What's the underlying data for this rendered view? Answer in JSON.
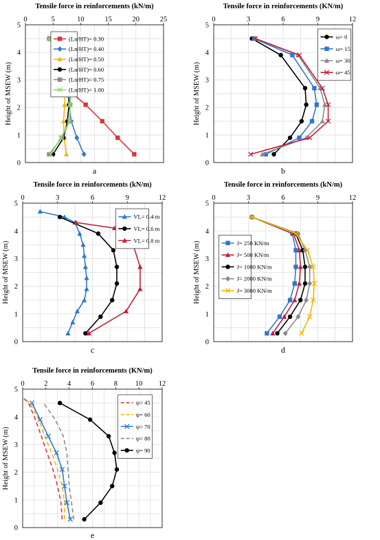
{
  "charts": [
    {
      "id": "a",
      "x_title": "Tensile force in reinforcements (kN/m)",
      "y_title": "Height of MSEW (m)",
      "panel_label": "a",
      "xlim": [
        0,
        25
      ],
      "xticks": [
        0,
        5,
        10,
        15,
        20,
        25
      ],
      "ylim": [
        0,
        5
      ],
      "yticks": [
        0,
        1,
        2,
        3,
        4,
        5
      ],
      "legend": {
        "x0": 4.6,
        "y0": 4.75,
        "w": 1.55,
        "step": 0.37
      },
      "series": [
        {
          "name": "(Ln/HT)= 0.30",
          "color": "#d9353b",
          "marker": "square",
          "dash": "",
          "x": [
            19.7,
            16.7,
            13.9,
            10.9,
            7.3,
            6.3,
            4.3
          ],
          "y": [
            0.3,
            0.9,
            1.5,
            2.1,
            2.7,
            3.9,
            4.5
          ]
        },
        {
          "name": "(Ln/HT)= 0.40",
          "color": "#2f78cc",
          "marker": "diamond",
          "dash": "",
          "x": [
            10.6,
            9.3,
            8.3,
            7.9,
            7.6,
            6.9,
            4.3
          ],
          "y": [
            0.3,
            0.9,
            1.5,
            2.1,
            2.7,
            3.9,
            4.5
          ]
        },
        {
          "name": "(Ln/HT)= 0.50",
          "color": "#f4b400",
          "marker": "triangle",
          "dash": "",
          "x": [
            7.4,
            7.0,
            6.9,
            7.1,
            7.2,
            6.2,
            4.3
          ],
          "y": [
            0.3,
            0.9,
            1.5,
            2.1,
            2.7,
            3.9,
            4.5
          ]
        },
        {
          "name": "(Ln/HT)= 0.60",
          "color": "#000000",
          "marker": "circle",
          "dash": "",
          "x": [
            5.0,
            6.9,
            7.6,
            7.9,
            7.9,
            6.8,
            4.3
          ],
          "y": [
            0.3,
            0.9,
            1.5,
            2.1,
            2.7,
            3.9,
            4.5
          ]
        },
        {
          "name": "(Ln/HT)= 0.75",
          "color": "#8a8a8a",
          "marker": "square",
          "dash": "",
          "x": [
            4.3,
            6.6,
            8.0,
            8.1,
            7.8,
            6.6,
            4.3
          ],
          "y": [
            0.3,
            0.9,
            1.5,
            2.1,
            2.7,
            3.9,
            4.5
          ]
        },
        {
          "name": "(Ln/HT)= 1.00",
          "color": "#8ed86a",
          "marker": "x",
          "dash": "",
          "x": [
            4.6,
            6.4,
            8.0,
            8.1,
            8.3,
            6.5,
            4.3
          ],
          "y": [
            0.3,
            0.9,
            1.5,
            2.1,
            2.7,
            3.9,
            4.5
          ]
        }
      ]
    },
    {
      "id": "b",
      "x_title": "Tensile force in reinforcements (KN/m)",
      "y_title": "Height of MSEW (m)",
      "panel_label": "b",
      "xlim": [
        0,
        12
      ],
      "xticks": [
        0,
        3,
        6,
        9,
        12
      ],
      "ylim": [
        0,
        5
      ],
      "yticks": [
        0,
        1,
        2,
        3,
        4,
        5
      ],
      "legend": {
        "x0": 9.0,
        "y0": 4.85,
        "w": 1.3,
        "step": 0.43
      },
      "series": [
        {
          "name": "ω= 0",
          "color": "#000000",
          "marker": "circle",
          "dash": "",
          "x": [
            5.2,
            6.6,
            7.6,
            8.0,
            7.9,
            5.8,
            3.3
          ],
          "y": [
            0.3,
            0.9,
            1.5,
            2.1,
            2.7,
            3.9,
            4.5
          ]
        },
        {
          "name": "ω= 15",
          "color": "#2f78cc",
          "marker": "square",
          "dash": "",
          "x": [
            4.5,
            7.4,
            8.5,
            8.9,
            8.7,
            6.8,
            3.5
          ],
          "y": [
            0.3,
            0.9,
            1.5,
            2.1,
            2.7,
            3.9,
            4.5
          ]
        },
        {
          "name": "ω= 30",
          "color": "#8a8a8a",
          "marker": "triangle",
          "dash": "",
          "x": [
            4.2,
            8.0,
            9.4,
            9.6,
            9.2,
            7.3,
            3.6
          ],
          "y": [
            0.3,
            0.9,
            1.5,
            2.1,
            2.7,
            3.9,
            4.5
          ]
        },
        {
          "name": "ω= 45",
          "color": "#c0203a",
          "marker": "x",
          "dash": "",
          "x": [
            3.2,
            8.3,
            9.9,
            9.9,
            9.4,
            7.4,
            3.6
          ],
          "y": [
            0.3,
            0.9,
            1.5,
            2.1,
            2.7,
            3.9,
            4.5
          ]
        }
      ]
    },
    {
      "id": "c",
      "x_title": "Tensile force in reinforcements (kN/m)",
      "y_title": "Height of MSEW (m)",
      "panel_label": "c",
      "xlim": [
        0,
        12
      ],
      "xticks": [
        0,
        3,
        6,
        9,
        12
      ],
      "ylim": [
        0,
        5
      ],
      "yticks": [
        0,
        1,
        2,
        3,
        4,
        5
      ],
      "legend": {
        "x0": 8.0,
        "y0": 4.8,
        "w": 1.3,
        "step": 0.43
      },
      "series": [
        {
          "name": "VL= 0.4 m",
          "color": "#2f78cc",
          "marker": "triangle",
          "dash": "",
          "x": [
            3.9,
            4.3,
            4.7,
            5.3,
            5.5,
            5.5,
            5.4,
            5.3,
            5.2,
            4.9,
            4.5,
            3.6,
            1.5
          ],
          "y": [
            0.3,
            0.7,
            1.1,
            1.5,
            1.9,
            2.3,
            2.7,
            3.1,
            3.5,
            3.9,
            4.3,
            4.5,
            4.7
          ]
        },
        {
          "name": "VL= 0.6 m",
          "color": "#000000",
          "marker": "circle",
          "dash": "",
          "x": [
            5.4,
            6.7,
            7.7,
            8.1,
            8.1,
            7.8,
            6.5,
            3.2
          ],
          "y": [
            0.3,
            0.9,
            1.5,
            2.1,
            2.7,
            3.3,
            3.9,
            4.5
          ]
        },
        {
          "name": "VL= 0.8 m",
          "color": "#c0203a",
          "marker": "triangle",
          "dash": "",
          "x": [
            5.7,
            8.9,
            10.1,
            10.1,
            9.5,
            7.9,
            4.6
          ],
          "y": [
            0.3,
            1.1,
            1.9,
            2.7,
            3.5,
            4.1,
            4.3
          ]
        }
      ]
    },
    {
      "id": "d",
      "x_title": "Tensile force in reinforcements (kN/m)",
      "y_title": "Height of MSEW (m)",
      "panel_label": "d",
      "xlim": [
        0,
        12
      ],
      "xticks": [
        0,
        3,
        6,
        9,
        12
      ],
      "ylim": [
        0,
        5
      ],
      "yticks": [
        0,
        1,
        2,
        3,
        4,
        5
      ],
      "legend": {
        "x0": 0.45,
        "y0": 3.85,
        "w": 1.25,
        "step": 0.43
      },
      "series": [
        {
          "name": "J= 250 KN/m",
          "color": "#2f78cc",
          "marker": "square",
          "dash": "",
          "x": [
            4.6,
            5.7,
            6.6,
            7.0,
            7.1,
            7.1,
            6.8,
            3.3
          ],
          "y": [
            0.3,
            0.9,
            1.5,
            2.1,
            2.7,
            3.3,
            3.9,
            4.5
          ]
        },
        {
          "name": "J= 500 KN/m",
          "color": "#c0203a",
          "marker": "triangle",
          "dash": "",
          "x": [
            5.1,
            6.1,
            7.0,
            7.4,
            7.5,
            7.4,
            6.9,
            3.3
          ],
          "y": [
            0.3,
            0.9,
            1.5,
            2.1,
            2.7,
            3.3,
            3.9,
            4.5
          ]
        },
        {
          "name": "J= 1000 KN/m",
          "color": "#000000",
          "marker": "circle",
          "dash": "",
          "x": [
            5.5,
            6.6,
            7.5,
            7.9,
            7.9,
            7.7,
            7.1,
            3.3
          ],
          "y": [
            0.3,
            0.9,
            1.5,
            2.1,
            2.7,
            3.3,
            3.9,
            4.5
          ]
        },
        {
          "name": "J= 2000 KN/m",
          "color": "#8a8a8a",
          "marker": "diamond",
          "dash": "",
          "x": [
            6.2,
            7.3,
            8.0,
            8.3,
            8.3,
            7.9,
            7.3,
            3.3
          ],
          "y": [
            0.3,
            0.9,
            1.5,
            2.1,
            2.7,
            3.3,
            3.9,
            4.5
          ]
        },
        {
          "name": "J= 3000 KN/m",
          "color": "#f4b400",
          "marker": "x",
          "dash": "",
          "x": [
            7.6,
            8.3,
            8.6,
            8.7,
            8.6,
            8.1,
            7.1,
            3.3
          ],
          "y": [
            0.3,
            0.9,
            1.5,
            2.1,
            2.7,
            3.3,
            3.9,
            4.5
          ]
        }
      ]
    },
    {
      "id": "e",
      "x_title": "Tensile force in reinforcements (KN/m)",
      "y_title": "Height of MSEW (m)",
      "panel_label": "e",
      "xlim": [
        0,
        12
      ],
      "xticks": [
        0,
        2,
        4,
        6,
        8,
        10,
        12
      ],
      "ylim": [
        0,
        5
      ],
      "yticks": [
        0,
        1,
        2,
        3,
        4,
        5
      ],
      "legend": {
        "x0": 8.2,
        "y0": 4.8,
        "w": 1.4,
        "step": 0.43
      },
      "series": [
        {
          "name": "ψ= 45",
          "color": "#d9353b",
          "marker": "none",
          "dash": "6,4",
          "x": [
            3.4,
            3.3,
            3.0,
            2.6,
            2.1,
            1.6,
            1.1,
            0.5,
            0.0
          ],
          "y": [
            0.3,
            0.9,
            1.5,
            2.1,
            2.7,
            3.3,
            3.9,
            4.5,
            4.7
          ]
        },
        {
          "name": "ψ= 60",
          "color": "#f4b400",
          "marker": "none",
          "dash": "6,4",
          "x": [
            3.6,
            3.6,
            3.4,
            3.0,
            2.5,
            1.9,
            1.4,
            0.6,
            0.1
          ],
          "y": [
            0.3,
            0.9,
            1.5,
            2.1,
            2.7,
            3.3,
            3.9,
            4.5,
            4.7
          ]
        },
        {
          "name": "ψ= 70",
          "color": "#2f78cc",
          "marker": "x",
          "dash": "",
          "x": [
            4.1,
            3.8,
            3.6,
            3.4,
            2.9,
            2.2,
            1.5,
            0.8
          ],
          "y": [
            0.3,
            0.9,
            1.5,
            2.1,
            2.7,
            3.3,
            3.9,
            4.5
          ]
        },
        {
          "name": "ψ= 80",
          "color": "#8a8a8a",
          "marker": "none",
          "dash": "6,4",
          "x": [
            4.4,
            4.2,
            4.0,
            3.9,
            3.8,
            3.5,
            2.8,
            1.8
          ],
          "y": [
            0.3,
            0.9,
            1.5,
            2.1,
            2.7,
            3.3,
            3.9,
            4.5
          ]
        },
        {
          "name": "ψ= 90",
          "color": "#000000",
          "marker": "circle",
          "dash": "",
          "x": [
            5.3,
            6.7,
            7.7,
            8.1,
            7.9,
            7.4,
            5.8,
            3.2
          ],
          "y": [
            0.3,
            0.9,
            1.5,
            2.1,
            2.7,
            3.3,
            3.9,
            4.5
          ]
        }
      ]
    }
  ]
}
